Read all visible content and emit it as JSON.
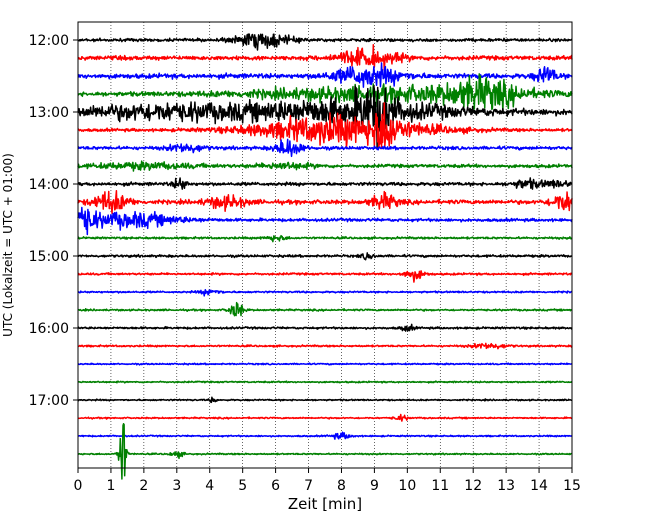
{
  "chart_data": {
    "type": "line",
    "title": "",
    "xlabel": "Zeit  [min]",
    "ylabel": "UTC (Lokalzeit = UTC + 01:00)",
    "xlim": [
      0,
      15
    ],
    "x_ticks": [
      0,
      1,
      2,
      3,
      4,
      5,
      6,
      7,
      8,
      9,
      10,
      11,
      12,
      13,
      14,
      15
    ],
    "x_tick_labels": [
      "0",
      "1",
      "2",
      "3",
      "4",
      "5",
      "6",
      "7",
      "8",
      "9",
      "10",
      "11",
      "12",
      "13",
      "14",
      "15"
    ],
    "y_tick_labels": [
      "12:00",
      "13:00",
      "14:00",
      "15:00",
      "16:00",
      "17:00"
    ],
    "y_tick_trace_index": [
      0,
      4,
      8,
      12,
      16,
      20
    ],
    "grid": "vertical-dotted",
    "trace_interval_min": 15,
    "trace_colors": [
      "#000000",
      "#ff0000",
      "#0000ff",
      "#008000"
    ],
    "series": [
      {
        "start": "12:00",
        "amplitude": 1.0,
        "events": [
          [
            5.6,
            5,
            0.8
          ]
        ]
      },
      {
        "start": "12:15",
        "amplitude": 1.4,
        "events": [
          [
            8.8,
            6,
            0.9
          ]
        ]
      },
      {
        "start": "12:30",
        "amplitude": 1.6,
        "events": [
          [
            8.8,
            7,
            1.0
          ],
          [
            14.2,
            6,
            0.3
          ]
        ]
      },
      {
        "start": "12:45",
        "amplitude": 1.4,
        "events": [
          [
            9.5,
            5,
            4.0
          ],
          [
            12.3,
            8,
            1.0
          ]
        ]
      },
      {
        "start": "13:00",
        "amplitude": 2.0,
        "events": [
          [
            2.5,
            5,
            2.5
          ],
          [
            8.0,
            8,
            3.0
          ],
          [
            9.0,
            14,
            0.5
          ]
        ]
      },
      {
        "start": "13:15",
        "amplitude": 1.0,
        "events": [
          [
            8.0,
            10,
            2.5
          ],
          [
            9.3,
            12,
            0.3
          ]
        ]
      },
      {
        "start": "13:30",
        "amplitude": 1.1,
        "events": [
          [
            3.3,
            3,
            0.5
          ],
          [
            6.4,
            6,
            0.4
          ]
        ]
      },
      {
        "start": "13:45",
        "amplitude": 1.1,
        "events": [
          [
            2.0,
            2,
            1.5
          ],
          [
            6.3,
            2,
            0.8
          ]
        ]
      },
      {
        "start": "14:00",
        "amplitude": 1.1,
        "events": [
          [
            3.1,
            4,
            0.2
          ],
          [
            13.6,
            3,
            0.4
          ],
          [
            14.5,
            2,
            0.5
          ]
        ]
      },
      {
        "start": "14:15",
        "amplitude": 1.4,
        "events": [
          [
            1.0,
            7,
            0.5
          ],
          [
            4.5,
            4,
            0.6
          ],
          [
            9.3,
            5,
            0.4
          ],
          [
            14.8,
            7,
            0.4
          ]
        ]
      },
      {
        "start": "14:30",
        "amplitude": 1.0,
        "events": [
          [
            0.2,
            8,
            0.3
          ],
          [
            1.5,
            5,
            1.5
          ]
        ]
      },
      {
        "start": "14:45",
        "amplitude": 0.7,
        "events": [
          [
            6.0,
            2,
            0.3
          ]
        ]
      },
      {
        "start": "15:00",
        "amplitude": 0.8,
        "events": [
          [
            8.8,
            2,
            0.2
          ]
        ]
      },
      {
        "start": "15:15",
        "amplitude": 0.7,
        "events": [
          [
            10.2,
            4,
            0.3
          ]
        ]
      },
      {
        "start": "15:30",
        "amplitude": 0.6,
        "events": [
          [
            4.0,
            2,
            0.3
          ]
        ]
      },
      {
        "start": "15:45",
        "amplitude": 0.6,
        "events": [
          [
            4.8,
            6,
            0.2
          ]
        ]
      },
      {
        "start": "16:00",
        "amplitude": 0.7,
        "events": [
          [
            10.0,
            2,
            0.2
          ]
        ]
      },
      {
        "start": "16:15",
        "amplitude": 0.6,
        "events": [
          [
            12.5,
            2,
            0.5
          ]
        ]
      },
      {
        "start": "16:30",
        "amplitude": 0.5,
        "events": []
      },
      {
        "start": "16:45",
        "amplitude": 0.5,
        "events": []
      },
      {
        "start": "17:00",
        "amplitude": 0.5,
        "events": [
          [
            4.1,
            2,
            0.1
          ]
        ]
      },
      {
        "start": "17:15",
        "amplitude": 0.5,
        "events": [
          [
            9.8,
            2,
            0.2
          ]
        ]
      },
      {
        "start": "17:30",
        "amplitude": 0.5,
        "events": [
          [
            8.0,
            2,
            0.3
          ]
        ]
      },
      {
        "start": "17:45",
        "amplitude": 0.5,
        "events": [
          [
            1.35,
            30,
            0.1
          ],
          [
            3.0,
            2,
            0.2
          ]
        ]
      }
    ]
  }
}
